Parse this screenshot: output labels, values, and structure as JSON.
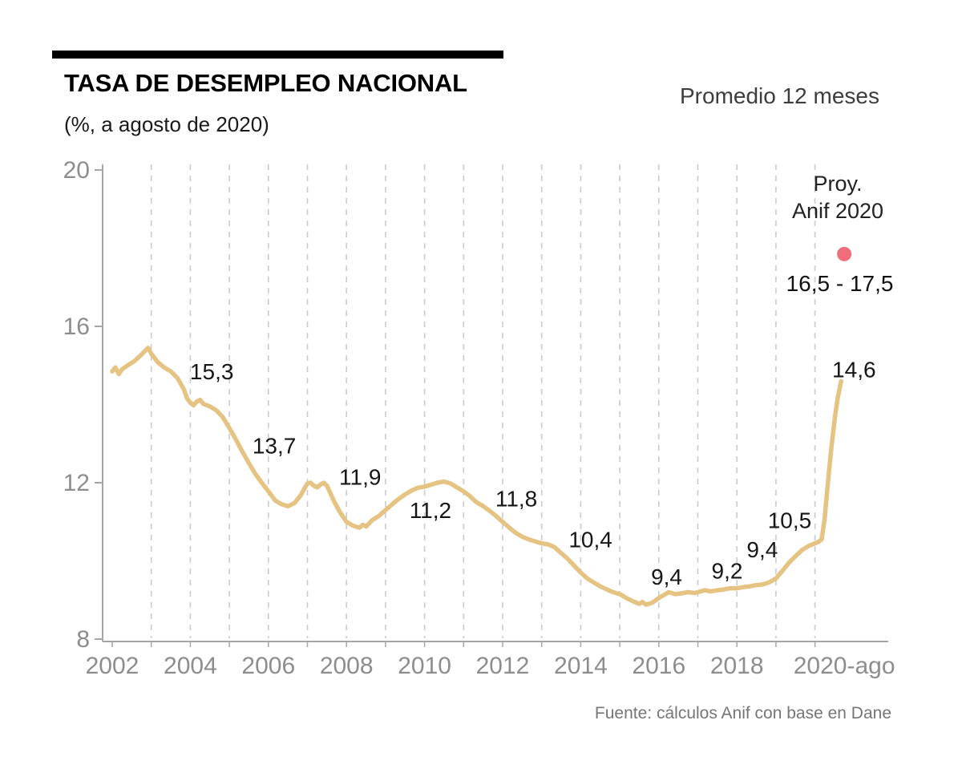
{
  "header": {
    "title": "TASA DE DESEMPLEO NACIONAL",
    "subtitle": "(%, a agosto de 2020)",
    "legend": "Promedio 12 meses"
  },
  "footer": {
    "source": "Fuente: cálculos Anif con base en Dane"
  },
  "chart_data": {
    "type": "line",
    "title": "TASA DE DESEMPLEO NACIONAL",
    "subtitle": "(%, a agosto de 2020)",
    "series_name": "Promedio 12 meses",
    "ylabel": "%",
    "ylim": [
      8,
      20
    ],
    "yticks": [
      8,
      12,
      16,
      20
    ],
    "xticks": [
      {
        "x": 2002,
        "label": "2002"
      },
      {
        "x": 2004,
        "label": "2004"
      },
      {
        "x": 2006,
        "label": "2006"
      },
      {
        "x": 2008,
        "label": "2008"
      },
      {
        "x": 2010,
        "label": "2010"
      },
      {
        "x": 2012,
        "label": "2012"
      },
      {
        "x": 2014,
        "label": "2014"
      },
      {
        "x": 2016,
        "label": "2016"
      },
      {
        "x": 2018,
        "label": "2018"
      },
      {
        "x": 2020.75,
        "label": "2020-ago"
      }
    ],
    "x_gridlines": [
      2003,
      2004,
      2005,
      2006,
      2007,
      2008,
      2009,
      2010,
      2011,
      2012,
      2013,
      2014,
      2015,
      2016,
      2017,
      2018,
      2019,
      2020
    ],
    "colors": {
      "line": "#e5c383",
      "grid": "#cbcbcb",
      "axis": "#a6a6a6",
      "tick_label": "#8d8d8d",
      "annotation": "#161616",
      "projection_dot": "#ef6e79"
    },
    "points": [
      [
        2002.0,
        14.85
      ],
      [
        2002.08,
        14.95
      ],
      [
        2002.17,
        14.78
      ],
      [
        2002.25,
        14.9
      ],
      [
        2002.42,
        15.02
      ],
      [
        2002.58,
        15.12
      ],
      [
        2002.75,
        15.28
      ],
      [
        2002.92,
        15.45
      ],
      [
        2003.0,
        15.3
      ],
      [
        2003.17,
        15.08
      ],
      [
        2003.33,
        14.95
      ],
      [
        2003.5,
        14.85
      ],
      [
        2003.67,
        14.68
      ],
      [
        2003.83,
        14.4
      ],
      [
        2003.92,
        14.15
      ],
      [
        2004.0,
        14.05
      ],
      [
        2004.08,
        13.98
      ],
      [
        2004.17,
        14.08
      ],
      [
        2004.25,
        14.12
      ],
      [
        2004.33,
        14.02
      ],
      [
        2004.5,
        13.95
      ],
      [
        2004.67,
        13.85
      ],
      [
        2004.83,
        13.68
      ],
      [
        2005.0,
        13.4
      ],
      [
        2005.17,
        13.1
      ],
      [
        2005.33,
        12.8
      ],
      [
        2005.5,
        12.5
      ],
      [
        2005.67,
        12.22
      ],
      [
        2005.83,
        12.0
      ],
      [
        2006.0,
        11.78
      ],
      [
        2006.17,
        11.55
      ],
      [
        2006.33,
        11.45
      ],
      [
        2006.5,
        11.4
      ],
      [
        2006.67,
        11.48
      ],
      [
        2006.83,
        11.68
      ],
      [
        2006.92,
        11.85
      ],
      [
        2007.0,
        11.98
      ],
      [
        2007.08,
        12.0
      ],
      [
        2007.17,
        11.92
      ],
      [
        2007.25,
        11.88
      ],
      [
        2007.33,
        11.95
      ],
      [
        2007.42,
        12.0
      ],
      [
        2007.5,
        11.92
      ],
      [
        2007.58,
        11.75
      ],
      [
        2007.67,
        11.55
      ],
      [
        2007.83,
        11.25
      ],
      [
        2008.0,
        11.0
      ],
      [
        2008.17,
        10.9
      ],
      [
        2008.33,
        10.85
      ],
      [
        2008.42,
        10.92
      ],
      [
        2008.5,
        10.88
      ],
      [
        2008.67,
        11.05
      ],
      [
        2008.83,
        11.15
      ],
      [
        2009.0,
        11.3
      ],
      [
        2009.17,
        11.45
      ],
      [
        2009.33,
        11.58
      ],
      [
        2009.5,
        11.7
      ],
      [
        2009.67,
        11.8
      ],
      [
        2009.83,
        11.87
      ],
      [
        2010.0,
        11.9
      ],
      [
        2010.17,
        11.95
      ],
      [
        2010.33,
        12.0
      ],
      [
        2010.5,
        12.03
      ],
      [
        2010.67,
        11.98
      ],
      [
        2010.83,
        11.88
      ],
      [
        2011.0,
        11.78
      ],
      [
        2011.17,
        11.65
      ],
      [
        2011.33,
        11.5
      ],
      [
        2011.5,
        11.4
      ],
      [
        2011.67,
        11.28
      ],
      [
        2011.83,
        11.15
      ],
      [
        2012.0,
        11.0
      ],
      [
        2012.17,
        10.85
      ],
      [
        2012.33,
        10.72
      ],
      [
        2012.5,
        10.62
      ],
      [
        2012.67,
        10.55
      ],
      [
        2012.83,
        10.5
      ],
      [
        2013.0,
        10.45
      ],
      [
        2013.17,
        10.42
      ],
      [
        2013.33,
        10.35
      ],
      [
        2013.5,
        10.2
      ],
      [
        2013.67,
        10.05
      ],
      [
        2013.83,
        9.88
      ],
      [
        2014.0,
        9.7
      ],
      [
        2014.17,
        9.55
      ],
      [
        2014.33,
        9.45
      ],
      [
        2014.5,
        9.35
      ],
      [
        2014.67,
        9.27
      ],
      [
        2014.83,
        9.2
      ],
      [
        2015.0,
        9.15
      ],
      [
        2015.17,
        9.05
      ],
      [
        2015.33,
        8.97
      ],
      [
        2015.5,
        8.9
      ],
      [
        2015.58,
        8.95
      ],
      [
        2015.67,
        8.88
      ],
      [
        2015.83,
        8.93
      ],
      [
        2016.0,
        9.05
      ],
      [
        2016.17,
        9.15
      ],
      [
        2016.25,
        9.2
      ],
      [
        2016.42,
        9.15
      ],
      [
        2016.58,
        9.17
      ],
      [
        2016.75,
        9.2
      ],
      [
        2016.92,
        9.18
      ],
      [
        2017.0,
        9.2
      ],
      [
        2017.17,
        9.25
      ],
      [
        2017.33,
        9.22
      ],
      [
        2017.5,
        9.25
      ],
      [
        2017.67,
        9.27
      ],
      [
        2017.83,
        9.3
      ],
      [
        2018.0,
        9.3
      ],
      [
        2018.17,
        9.33
      ],
      [
        2018.33,
        9.35
      ],
      [
        2018.5,
        9.38
      ],
      [
        2018.67,
        9.4
      ],
      [
        2018.83,
        9.45
      ],
      [
        2019.0,
        9.55
      ],
      [
        2019.17,
        9.75
      ],
      [
        2019.33,
        9.95
      ],
      [
        2019.5,
        10.12
      ],
      [
        2019.67,
        10.28
      ],
      [
        2019.83,
        10.38
      ],
      [
        2020.0,
        10.45
      ],
      [
        2020.08,
        10.48
      ],
      [
        2020.17,
        10.55
      ],
      [
        2020.25,
        11.1
      ],
      [
        2020.33,
        12.0
      ],
      [
        2020.42,
        12.9
      ],
      [
        2020.5,
        13.6
      ],
      [
        2020.58,
        14.15
      ],
      [
        2020.67,
        14.6
      ]
    ],
    "annotations": [
      {
        "x": 2004.55,
        "y": 14.85,
        "text": "15,3"
      },
      {
        "x": 2006.15,
        "y": 12.95,
        "text": "13,7"
      },
      {
        "x": 2008.35,
        "y": 12.15,
        "text": "11,9"
      },
      {
        "x": 2010.15,
        "y": 11.3,
        "text": "11,2"
      },
      {
        "x": 2012.35,
        "y": 11.6,
        "text": "11,8"
      },
      {
        "x": 2014.25,
        "y": 10.55,
        "text": "10,4"
      },
      {
        "x": 2016.2,
        "y": 9.6,
        "text": "9,4"
      },
      {
        "x": 2017.75,
        "y": 9.75,
        "text": "9,2"
      },
      {
        "x": 2018.65,
        "y": 10.3,
        "text": "9,4"
      },
      {
        "x": 2019.35,
        "y": 11.05,
        "text": "10,5"
      },
      {
        "x": 2021.0,
        "y": 14.9,
        "text": "14,6"
      }
    ],
    "projection": {
      "line1": "Proy.",
      "line2": "Anif 2020",
      "range": "16,5 - 17,5",
      "dot": {
        "x": 2020.75,
        "y": 17.85
      }
    }
  }
}
